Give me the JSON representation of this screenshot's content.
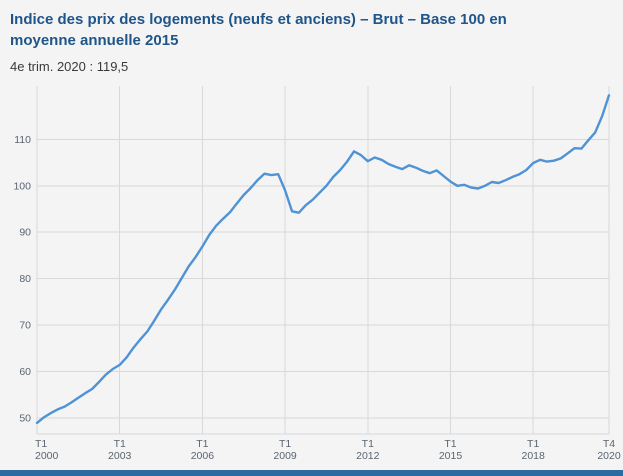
{
  "header": {
    "title": "Indice des prix des logements (neufs et anciens) – Brut – Base 100 en moyenne annuelle 2015",
    "subtitle": "4e trim. 2020 : 119,5"
  },
  "colors": {
    "background": "#f4f4f4",
    "title": "#20558a",
    "line": "#4f93d4",
    "grid": "#d9d9d9",
    "tick": "#5a6570",
    "footer_bar": "#2d6a9f"
  },
  "chart_data": {
    "type": "line",
    "title": "Indice des prix des logements (neufs et anciens) – Brut – Base 100 en moyenne annuelle 2015",
    "xlabel": "",
    "ylabel": "",
    "x_frequency": "quarterly",
    "x_start": "T1 2000",
    "x_end": "T4 2020",
    "ylim": [
      46.5,
      121.5
    ],
    "y_ticks": [
      50,
      60,
      70,
      80,
      90,
      100,
      110
    ],
    "x_ticks": [
      {
        "index": 0,
        "line1": "T1",
        "line2": "2000"
      },
      {
        "index": 12,
        "line1": "T1",
        "line2": "2003"
      },
      {
        "index": 24,
        "line1": "T1",
        "line2": "2006"
      },
      {
        "index": 36,
        "line1": "T1",
        "line2": "2009"
      },
      {
        "index": 48,
        "line1": "T1",
        "line2": "2012"
      },
      {
        "index": 60,
        "line1": "T1",
        "line2": "2015"
      },
      {
        "index": 72,
        "line1": "T1",
        "line2": "2018"
      },
      {
        "index": 83,
        "line1": "T4",
        "line2": "2020"
      }
    ],
    "grid": true,
    "legend": "none",
    "last_point": {
      "label": "4e trim. 2020",
      "value": 119.5
    },
    "series": [
      {
        "name": "Indice des prix des logements (neufs et anciens) – Brut",
        "values": [
          48.9,
          50.1,
          51.0,
          51.8,
          52.4,
          53.3,
          54.3,
          55.3,
          56.2,
          57.7,
          59.3,
          60.5,
          61.4,
          63.0,
          65.1,
          66.9,
          68.6,
          70.9,
          73.3,
          75.4,
          77.6,
          80.1,
          82.6,
          84.6,
          86.9,
          89.4,
          91.4,
          92.9,
          94.3,
          96.2,
          98.0,
          99.5,
          101.2,
          102.6,
          102.3,
          102.5,
          99.0,
          94.5,
          94.2,
          95.8,
          97.0,
          98.5,
          100.0,
          101.9,
          103.4,
          105.2,
          107.4,
          106.6,
          105.3,
          106.1,
          105.6,
          104.7,
          104.1,
          103.6,
          104.4,
          103.9,
          103.2,
          102.7,
          103.3,
          102.1,
          100.9,
          100.0,
          100.2,
          99.6,
          99.4,
          100.0,
          100.8,
          100.6,
          101.2,
          101.9,
          102.5,
          103.4,
          104.9,
          105.6,
          105.2,
          105.4,
          105.9,
          107.0,
          108.1,
          108.0,
          109.8,
          111.5,
          115.0,
          119.5
        ]
      }
    ]
  }
}
